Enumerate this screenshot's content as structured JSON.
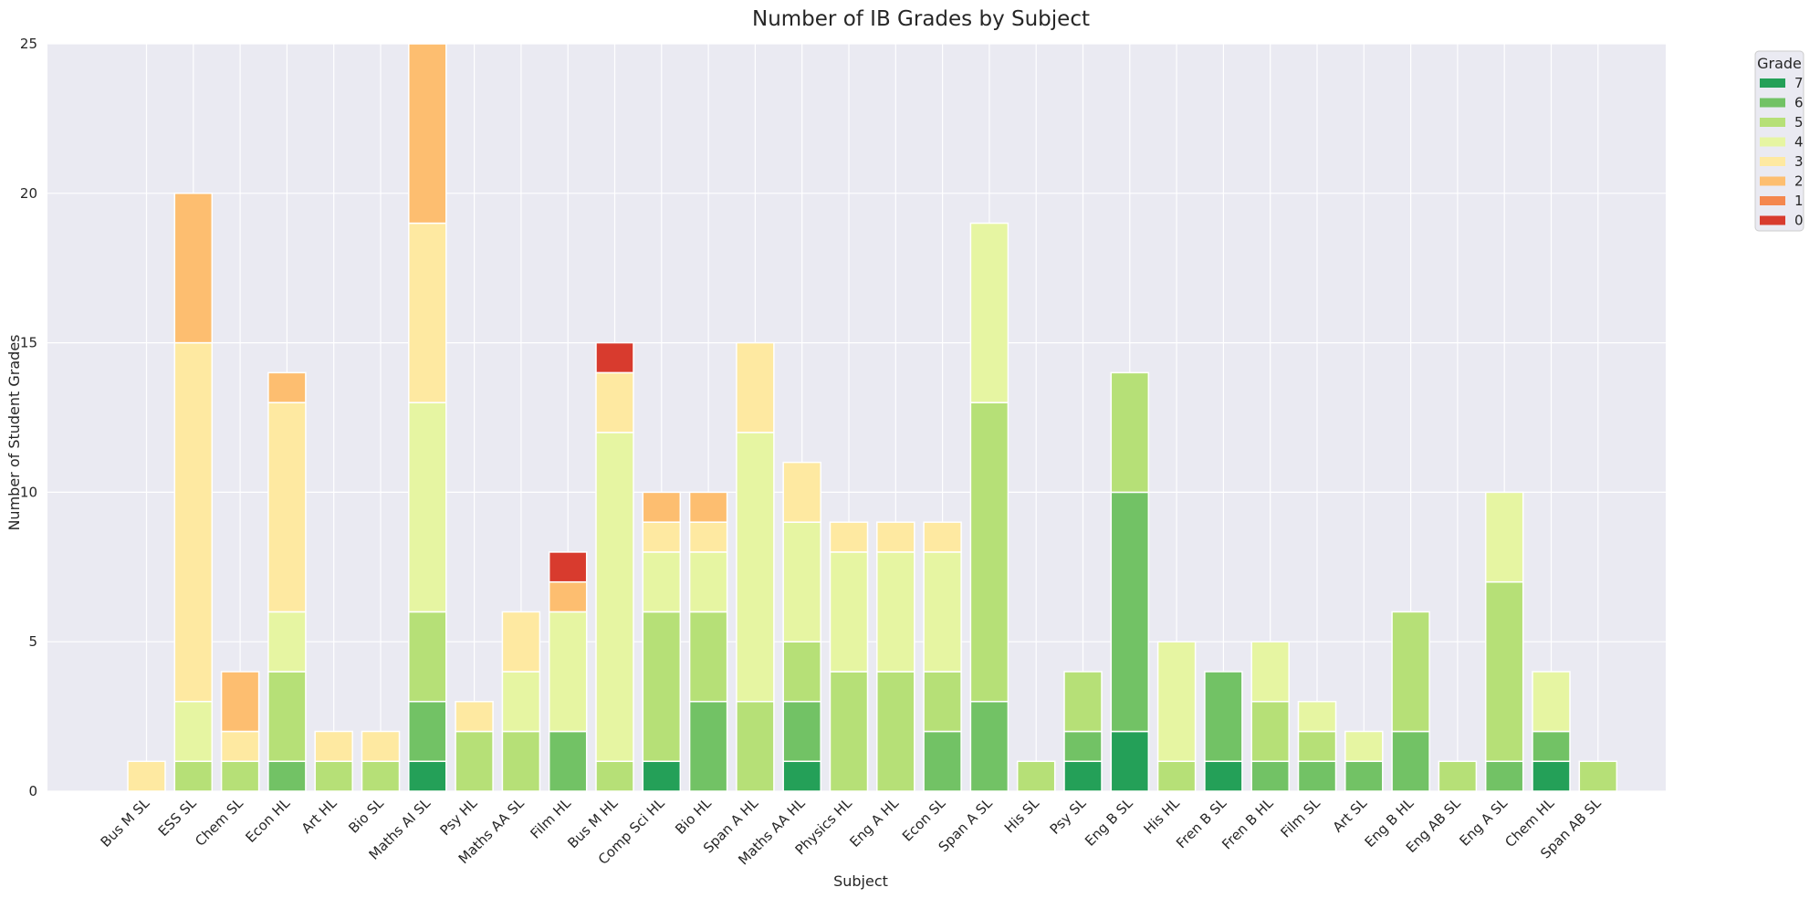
{
  "chart_data": {
    "type": "bar",
    "stacked": true,
    "title": "Number of IB Grades by Subject",
    "xlabel": "Subject",
    "ylabel": "Number of Student Grades",
    "ylim": [
      0,
      25
    ],
    "yticks": [
      0,
      5,
      10,
      15,
      20,
      25
    ],
    "grid": true,
    "legend_title": "Grade",
    "legend_position": "outside-top-right",
    "categories": [
      "Bus M SL",
      "ESS SL",
      "Chem SL",
      "Econ HL",
      "Art HL",
      "Bio SL",
      "Maths AI SL",
      "Psy HL",
      "Maths AA SL",
      "Film HL",
      "Bus M HL",
      "Comp Sci HL",
      "Bio HL",
      "Span A HL",
      "Maths AA HL",
      "Physics HL",
      "Eng A HL",
      "Econ SL",
      "Span A SL",
      "His SL",
      "Psy SL",
      "Eng B SL",
      "His HL",
      "Fren B SL",
      "Fren B HL",
      "Film SL",
      "Art SL",
      "Eng B HL",
      "Eng AB SL",
      "Eng A SL",
      "Chem HL",
      "Span AB SL"
    ],
    "series": [
      {
        "name": "7",
        "color": "#24a058",
        "values": [
          0,
          0,
          0,
          0,
          0,
          0,
          1,
          0,
          0,
          0,
          0,
          1,
          0,
          0,
          1,
          0,
          0,
          0,
          0,
          0,
          1,
          2,
          0,
          1,
          0,
          0,
          0,
          0,
          0,
          0,
          1,
          0
        ]
      },
      {
        "name": "6",
        "color": "#72c265",
        "values": [
          0,
          0,
          0,
          1,
          0,
          0,
          2,
          0,
          0,
          2,
          0,
          0,
          3,
          0,
          2,
          0,
          0,
          2,
          3,
          0,
          1,
          8,
          0,
          3,
          1,
          1,
          1,
          2,
          0,
          1,
          1,
          0
        ]
      },
      {
        "name": "5",
        "color": "#b6e077",
        "values": [
          0,
          1,
          1,
          3,
          1,
          1,
          3,
          2,
          2,
          0,
          1,
          5,
          3,
          3,
          2,
          4,
          4,
          2,
          10,
          1,
          2,
          4,
          1,
          0,
          2,
          1,
          0,
          4,
          1,
          6,
          0,
          1
        ]
      },
      {
        "name": "4",
        "color": "#e6f5a2",
        "values": [
          0,
          2,
          0,
          2,
          0,
          0,
          7,
          0,
          2,
          4,
          11,
          2,
          2,
          9,
          4,
          4,
          4,
          4,
          6,
          0,
          0,
          0,
          4,
          0,
          2,
          1,
          1,
          0,
          0,
          3,
          2,
          0
        ]
      },
      {
        "name": "3",
        "color": "#fee9a1",
        "values": [
          1,
          12,
          1,
          7,
          1,
          1,
          6,
          1,
          2,
          0,
          2,
          1,
          1,
          3,
          2,
          1,
          1,
          1,
          0,
          0,
          0,
          0,
          0,
          0,
          0,
          0,
          0,
          0,
          0,
          0,
          0,
          0
        ]
      },
      {
        "name": "2",
        "color": "#fdbe70",
        "values": [
          0,
          5,
          2,
          1,
          0,
          0,
          6,
          0,
          0,
          1,
          0,
          1,
          1,
          0,
          0,
          0,
          0,
          0,
          0,
          0,
          0,
          0,
          0,
          0,
          0,
          0,
          0,
          0,
          0,
          0,
          0,
          0
        ]
      },
      {
        "name": "1",
        "color": "#f4874e",
        "values": [
          0,
          0,
          0,
          0,
          0,
          0,
          0,
          0,
          0,
          0,
          0,
          0,
          0,
          0,
          0,
          0,
          0,
          0,
          0,
          0,
          0,
          0,
          0,
          0,
          0,
          0,
          0,
          0,
          0,
          0,
          0,
          0
        ]
      },
      {
        "name": "0",
        "color": "#d83b2e",
        "values": [
          0,
          0,
          0,
          0,
          0,
          0,
          0,
          0,
          0,
          1,
          1,
          0,
          0,
          0,
          0,
          0,
          0,
          0,
          0,
          0,
          0,
          0,
          0,
          0,
          0,
          0,
          0,
          0,
          0,
          0,
          0,
          0
        ]
      }
    ],
    "colors": {
      "plot_background": "#eaeaf2",
      "grid": "#ffffff",
      "bar_edge": "#ffffff"
    }
  }
}
